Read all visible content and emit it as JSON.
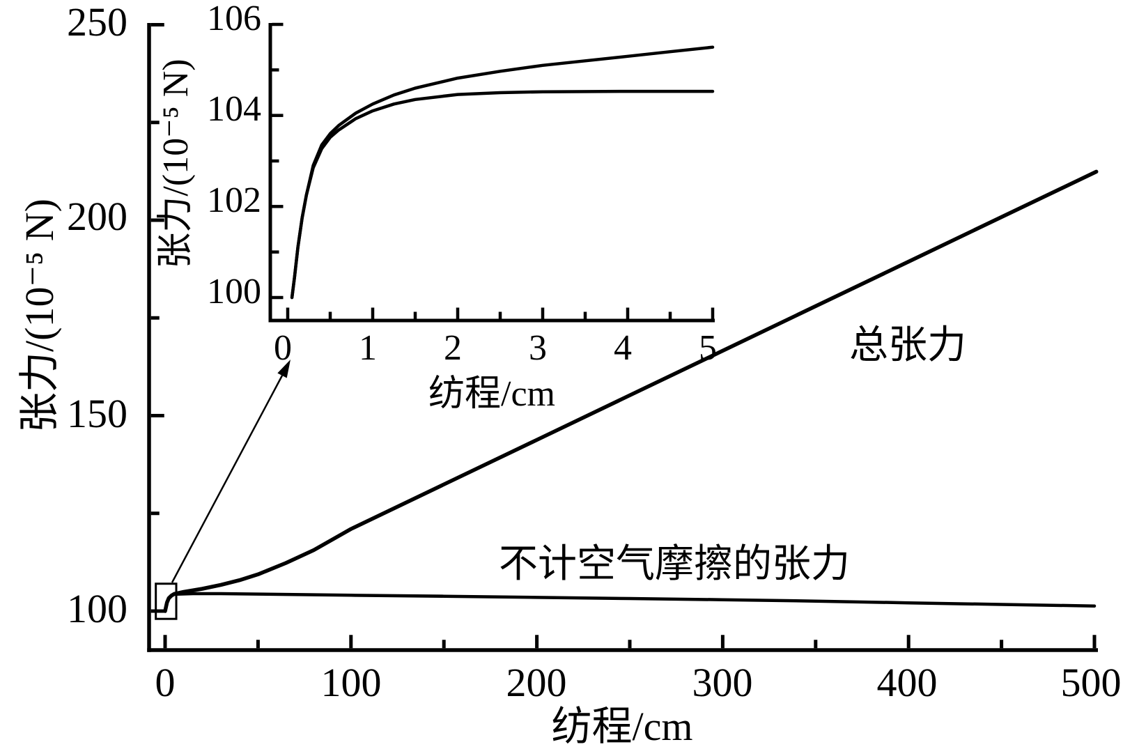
{
  "figure": {
    "background": "#ffffff",
    "ink": "#000000"
  },
  "chart_data": [
    {
      "id": "main",
      "type": "line",
      "title": "",
      "xlabel": "纺程/cm",
      "ylabel": "张力/(10⁻⁵ N)",
      "grid": false,
      "legend": "none (in-plot text annotations)",
      "xlim": [
        -9,
        510
      ],
      "ylim": [
        90,
        252
      ],
      "x_ticks": [
        0,
        100,
        200,
        300,
        400,
        500
      ],
      "x_tick_labels": [
        "0",
        "100",
        "200",
        "300",
        "400",
        "500"
      ],
      "y_ticks": [
        100,
        150,
        200,
        250
      ],
      "y_tick_labels": [
        "100",
        "150",
        "200",
        "250"
      ],
      "annotations": [
        {
          "text": "总张力",
          "x": 400,
          "y": 168
        },
        {
          "text": "不计空气摩擦的张力",
          "x": 274,
          "y": 112
        }
      ],
      "zoom_box": {
        "x_range": [
          -5,
          6
        ],
        "y_range": [
          98,
          107
        ]
      },
      "series": [
        {
          "name": "总张力",
          "points": [
            [
              0,
              100
            ],
            [
              1,
              102.2
            ],
            [
              2,
              103.3
            ],
            [
              3.5,
              104.0
            ],
            [
              5,
              104.4
            ],
            [
              10,
              104.9
            ],
            [
              20,
              105.7
            ],
            [
              30,
              106.7
            ],
            [
              40,
              107.9
            ],
            [
              50,
              109.4
            ],
            [
              65,
              112.3
            ],
            [
              80,
              115.6
            ],
            [
              100,
              121.0
            ],
            [
              150,
              132.4
            ],
            [
              200,
              143.8
            ],
            [
              250,
              155.2
            ],
            [
              300,
              166.6
            ],
            [
              350,
              178.0
            ],
            [
              400,
              189.4
            ],
            [
              450,
              200.8
            ],
            [
              501,
              212.4
            ]
          ]
        },
        {
          "name": "不计空气摩擦的张力",
          "points": [
            [
              0,
              100
            ],
            [
              1,
              102.1
            ],
            [
              2,
              103.2
            ],
            [
              3.5,
              103.9
            ],
            [
              5,
              104.3
            ],
            [
              15,
              104.45
            ],
            [
              30,
              104.45
            ],
            [
              50,
              104.35
            ],
            [
              100,
              104.05
            ],
            [
              150,
              103.8
            ],
            [
              200,
              103.5
            ],
            [
              250,
              103.2
            ],
            [
              300,
              102.9
            ],
            [
              350,
              102.55
            ],
            [
              400,
              102.1
            ],
            [
              450,
              101.7
            ],
            [
              500,
              101.3
            ]
          ]
        }
      ]
    },
    {
      "id": "inset",
      "type": "line",
      "title": "",
      "xlabel": "纺程/cm",
      "ylabel": "张力/(10⁻⁵ N)",
      "grid": false,
      "legend": "none",
      "xlim": [
        -0.2,
        5.05
      ],
      "ylim": [
        99.5,
        106
      ],
      "x_ticks": [
        0,
        1,
        2,
        3,
        4,
        5
      ],
      "x_tick_labels": [
        "0",
        "1",
        "2",
        "3",
        "4",
        "5"
      ],
      "y_ticks": [
        100,
        102,
        104,
        106
      ],
      "y_tick_labels": [
        "100",
        "102",
        "104",
        "106"
      ],
      "series": [
        {
          "name": "总张力",
          "points": [
            [
              0.05,
              100
            ],
            [
              0.08,
              100.45
            ],
            [
              0.12,
              101.1
            ],
            [
              0.17,
              101.75
            ],
            [
              0.22,
              102.25
            ],
            [
              0.3,
              102.9
            ],
            [
              0.4,
              103.35
            ],
            [
              0.5,
              103.6
            ],
            [
              0.6,
              103.78
            ],
            [
              0.8,
              104.05
            ],
            [
              1.0,
              104.25
            ],
            [
              1.25,
              104.45
            ],
            [
              1.5,
              104.6
            ],
            [
              2.0,
              104.82
            ],
            [
              2.5,
              104.97
            ],
            [
              3.0,
              105.1
            ],
            [
              3.5,
              105.2
            ],
            [
              4.0,
              105.3
            ],
            [
              4.5,
              105.4
            ],
            [
              5.0,
              105.5
            ]
          ]
        },
        {
          "name": "不计空气摩擦的张力",
          "points": [
            [
              0.05,
              100
            ],
            [
              0.08,
              100.45
            ],
            [
              0.12,
              101.1
            ],
            [
              0.17,
              101.75
            ],
            [
              0.22,
              102.25
            ],
            [
              0.3,
              102.85
            ],
            [
              0.4,
              103.27
            ],
            [
              0.5,
              103.52
            ],
            [
              0.6,
              103.68
            ],
            [
              0.8,
              103.93
            ],
            [
              1.0,
              104.1
            ],
            [
              1.25,
              104.25
            ],
            [
              1.5,
              104.35
            ],
            [
              2.0,
              104.46
            ],
            [
              2.5,
              104.5
            ],
            [
              3.0,
              104.52
            ],
            [
              4.0,
              104.53
            ],
            [
              5.0,
              104.53
            ]
          ]
        }
      ]
    }
  ]
}
